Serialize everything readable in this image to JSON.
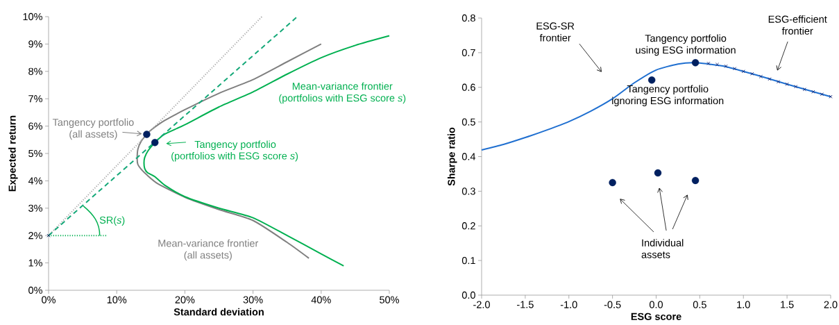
{
  "chart_data": [
    {
      "type": "line",
      "xlabel": "Standard deviation",
      "ylabel": "Expected return",
      "xlim": [
        0,
        50
      ],
      "ylim": [
        0,
        10
      ],
      "xticks": [
        {
          "value": 0,
          "label": "0%"
        },
        {
          "value": 10,
          "label": "10%"
        },
        {
          "value": 20,
          "label": "20%"
        },
        {
          "value": 30,
          "label": "30%"
        },
        {
          "value": 40,
          "label": "40%"
        },
        {
          "value": 50,
          "label": "50%"
        }
      ],
      "yticks": [
        {
          "value": 0,
          "label": "0%"
        },
        {
          "value": 1,
          "label": "1%"
        },
        {
          "value": 2,
          "label": "2%"
        },
        {
          "value": 3,
          "label": "3%"
        },
        {
          "value": 4,
          "label": "4%"
        },
        {
          "value": 5,
          "label": "5%"
        },
        {
          "value": 6,
          "label": "6%"
        },
        {
          "value": 7,
          "label": "7%"
        },
        {
          "value": 8,
          "label": "8%"
        },
        {
          "value": 9,
          "label": "9%"
        },
        {
          "value": 10,
          "label": "10%"
        }
      ],
      "series": [
        {
          "color": "#7f7f7f",
          "x": [
            40,
            35,
            30,
            25,
            20,
            17,
            15,
            14.4,
            13.6,
            13.1,
            13.0,
            13.1,
            13.6,
            14.5,
            16,
            20,
            25,
            30,
            35,
            38.2
          ],
          "values": [
            9.0,
            8.35,
            7.7,
            7.2,
            6.6,
            6.2,
            5.85,
            5.7,
            5.45,
            5.15,
            4.8,
            4.6,
            4.42,
            4.2,
            3.9,
            3.4,
            2.95,
            2.55,
            1.75,
            1.17
          ]
        },
        {
          "color": "#00b050",
          "x": [
            50,
            45,
            40,
            35,
            30,
            25,
            20,
            17,
            15.6,
            14.6,
            14.1,
            14.0,
            14.1,
            14.5,
            15.6,
            17,
            20,
            25,
            30,
            35,
            40,
            43.3
          ],
          "values": [
            9.3,
            8.95,
            8.5,
            7.9,
            7.25,
            6.7,
            6.05,
            5.7,
            5.4,
            5.1,
            4.85,
            4.65,
            4.45,
            4.3,
            4.15,
            3.85,
            3.42,
            3.0,
            2.65,
            2.0,
            1.33,
            0.89
          ]
        },
        {
          "color": "#a6a6a6",
          "line_style": "dotted",
          "x": [
            0,
            31.3
          ],
          "values": [
            2,
            10
          ]
        },
        {
          "color": "#14a878",
          "line_style": "dashed",
          "x": [
            0,
            36.5
          ],
          "values": [
            2,
            10
          ]
        },
        {
          "color": "#00b050",
          "line_style": "dotted",
          "x": [
            0,
            8.5
          ],
          "values": [
            2,
            2
          ]
        },
        {
          "type": "scatter",
          "color": "#002060",
          "marker": "circle",
          "x": [
            14.4,
            15.6
          ],
          "values": [
            5.7,
            5.4
          ]
        },
        {
          "type": "scatter",
          "color": "#002060",
          "marker": "cross",
          "x": [
            0
          ],
          "values": [
            2
          ]
        }
      ],
      "annotations": [
        {
          "text": "Tangency portfolio (all assets)",
          "x": 14.4,
          "y": 5.7
        },
        "Tangency portfolio",
        "Mean-variance frontier (portfolios with ESG score *s*)",
        "Mean-variance frontier (all assets)",
        {
          "text": "SR(*s*)",
          "x": 7.5,
          "y": 2
        },
        "(portfolios with ESG score *s*)"
      ]
    },
    {
      "type": "line",
      "xlabel": "ESG score",
      "ylabel": "Sharpe ratio",
      "xlim": [
        -2,
        2
      ],
      "ylim": [
        0,
        0.8
      ],
      "xticks": [
        {
          "value": -2,
          "label": "-2.0"
        },
        {
          "value": -1.5,
          "label": "-1.5"
        },
        {
          "value": -1,
          "label": "-1.0"
        },
        {
          "value": -0.5,
          "label": "-0.5"
        },
        {
          "value": 0,
          "label": "0.0"
        },
        {
          "value": 0.5,
          "label": "0.5"
        },
        {
          "value": 1,
          "label": "1.0"
        },
        {
          "value": 1.5,
          "label": "1.5"
        },
        {
          "value": 2,
          "label": "2.0"
        }
      ],
      "yticks": [
        {
          "value": 0,
          "label": "0.0"
        },
        {
          "value": 0.1,
          "label": "0.1"
        },
        {
          "value": 0.2,
          "label": "0.2"
        },
        {
          "value": 0.3,
          "label": "0.3"
        },
        {
          "value": 0.4,
          "label": "0.4"
        },
        {
          "value": 0.5,
          "label": "0.5"
        },
        {
          "value": 0.6,
          "label": "0.6"
        },
        {
          "value": 0.7,
          "label": "0.7"
        },
        {
          "value": 0.8,
          "label": "0.8"
        }
      ],
      "series": [
        {
          "color": "#1f6fd0",
          "x": [
            -2,
            -1.75,
            -1.5,
            -1.25,
            -1,
            -0.75,
            -0.5,
            -0.25,
            0,
            0.25,
            0.45,
            0.75,
            1,
            1.25,
            1.5,
            1.75,
            2
          ],
          "values": [
            0.419,
            0.435,
            0.455,
            0.477,
            0.501,
            0.531,
            0.567,
            0.613,
            0.65,
            0.667,
            0.671,
            0.662,
            0.646,
            0.628,
            0.609,
            0.591,
            0.573
          ]
        },
        {
          "type": "scatter",
          "color": "#1c2e7a",
          "marker": "cross",
          "x": [
            0.6,
            0.7,
            0.8,
            0.9,
            1.0,
            1.1,
            1.2,
            1.3,
            1.4,
            1.5,
            1.6,
            1.7,
            1.8,
            1.9,
            2.0
          ],
          "values": [
            0.669,
            0.666,
            0.661,
            0.654,
            0.646,
            0.639,
            0.631,
            0.624,
            0.616,
            0.609,
            0.602,
            0.594,
            0.587,
            0.58,
            0.573
          ]
        },
        {
          "type": "scatter",
          "color": "#002060",
          "marker": "circle",
          "x": [
            -0.05,
            0.45,
            -0.5,
            0.02,
            0.45
          ],
          "values": [
            0.621,
            0.671,
            0.325,
            0.353,
            0.331
          ]
        }
      ],
      "annotations": [
        "ESG-SR frontier",
        {
          "text": "Tangency portfolio using ESG information",
          "x": 0.45,
          "y": 0.671
        },
        {
          "text": "Tangency portfolio ignoring ESG information",
          "x": -0.05,
          "y": 0.621
        },
        "ESG-efficient frontier",
        "Individual assets"
      ]
    }
  ]
}
